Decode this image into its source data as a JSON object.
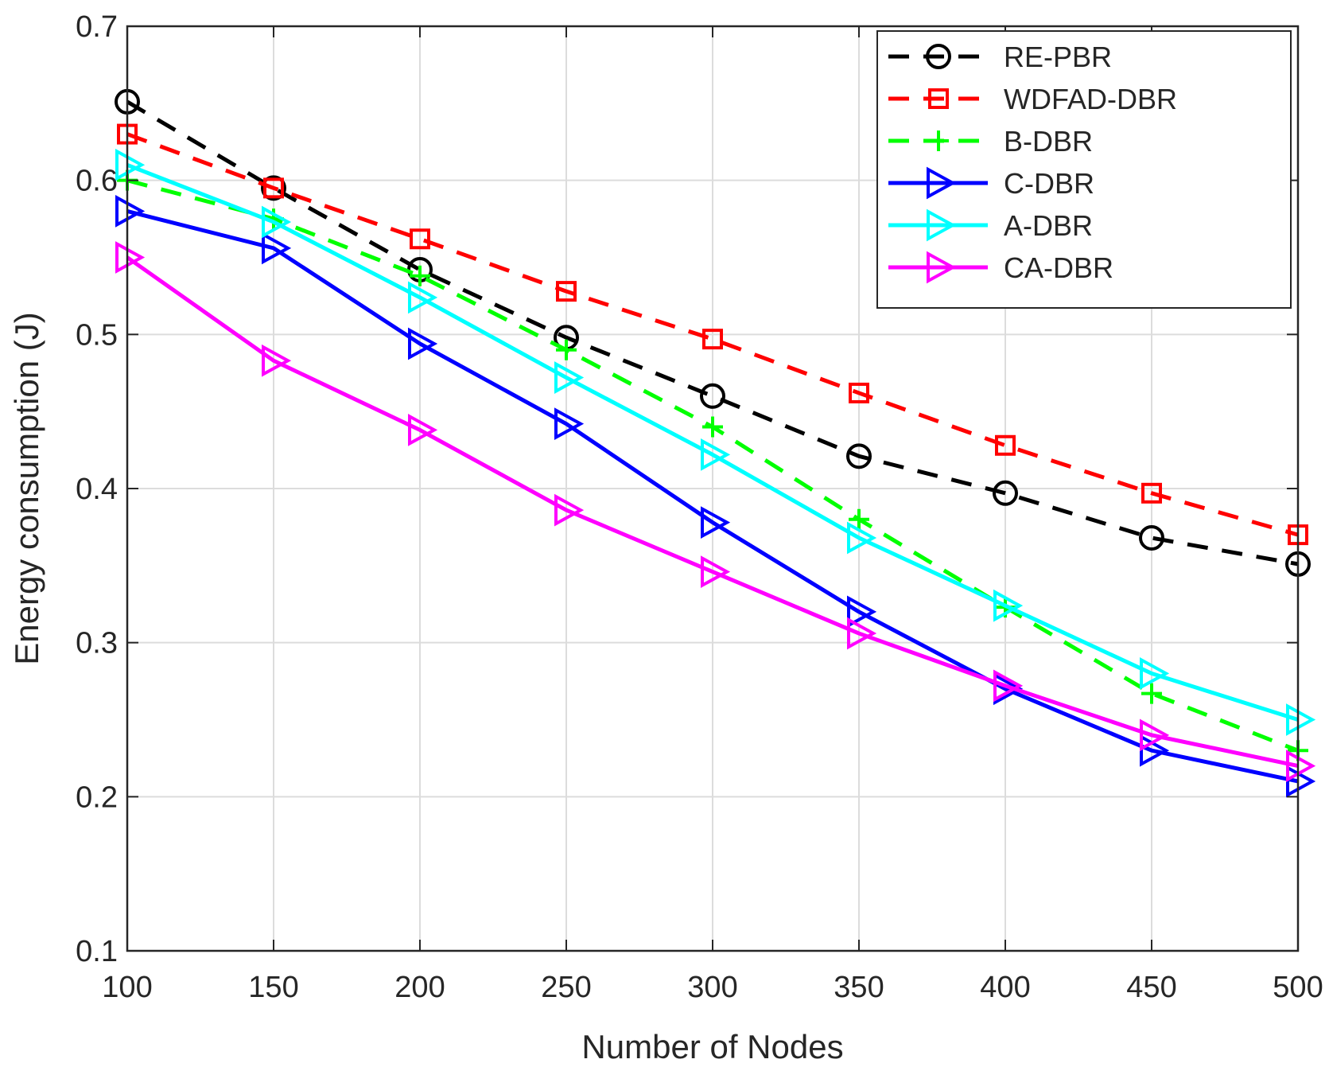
{
  "chart_data": {
    "type": "line",
    "title": "",
    "xlabel": "Number of Nodes",
    "ylabel": "Energy consumption (J)",
    "x": [
      100,
      150,
      200,
      250,
      300,
      350,
      400,
      450,
      500
    ],
    "x_tick_labels": [
      "100",
      "150",
      "200",
      "250",
      "300",
      "350",
      "400",
      "450",
      "500"
    ],
    "y_tick_labels": [
      "0.1",
      "0.2",
      "0.3",
      "0.4",
      "0.5",
      "0.6",
      "0.7"
    ],
    "xlim": [
      100,
      500
    ],
    "ylim": [
      0.1,
      0.7
    ],
    "grid": true,
    "legend_position": "top-right",
    "series": [
      {
        "name": "RE-PBR",
        "color": "#000000",
        "dash": "dashed",
        "marker": "circle",
        "values": [
          0.651,
          0.595,
          0.542,
          0.498,
          0.46,
          0.421,
          0.397,
          0.368,
          0.351
        ]
      },
      {
        "name": "WDFAD-DBR",
        "color": "#ff0000",
        "dash": "dashed",
        "marker": "square",
        "values": [
          0.63,
          0.595,
          0.562,
          0.528,
          0.497,
          0.462,
          0.428,
          0.397,
          0.37
        ]
      },
      {
        "name": "B-DBR",
        "color": "#00ff00",
        "dash": "dashed",
        "marker": "plus",
        "values": [
          0.6,
          0.575,
          0.538,
          0.49,
          0.44,
          0.38,
          0.323,
          0.267,
          0.23
        ]
      },
      {
        "name": "C-DBR",
        "color": "#0000ff",
        "dash": "solid",
        "marker": "triangle-right",
        "values": [
          0.58,
          0.556,
          0.494,
          0.442,
          0.378,
          0.32,
          0.27,
          0.23,
          0.21
        ]
      },
      {
        "name": "A-DBR",
        "color": "#00ffff",
        "dash": "solid",
        "marker": "triangle-right",
        "values": [
          0.61,
          0.573,
          0.524,
          0.472,
          0.422,
          0.368,
          0.324,
          0.28,
          0.25
        ]
      },
      {
        "name": "CA-DBR",
        "color": "#ff00ff",
        "dash": "solid",
        "marker": "triangle-right",
        "values": [
          0.55,
          0.483,
          0.438,
          0.386,
          0.346,
          0.306,
          0.272,
          0.24,
          0.22
        ]
      }
    ]
  }
}
